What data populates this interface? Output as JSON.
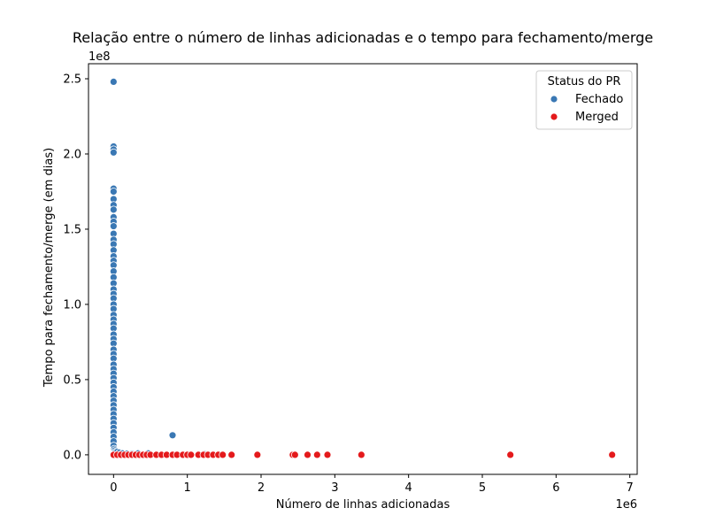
{
  "chart_data": {
    "type": "scatter",
    "title": "Relação entre o número de linhas adicionadas e o tempo para fechamento/merge",
    "xlabel": "Número de linhas adicionadas",
    "ylabel": "Tempo para fechamento/merge (em dias)",
    "x_offset_label": "1e6",
    "y_offset_label": "1e8",
    "xlim": [
      -0.34,
      7.1
    ],
    "ylim": [
      -0.13,
      2.6
    ],
    "x_scale": 1000000,
    "y_scale": 100000000,
    "x_ticks": [
      {
        "value": 0,
        "label": "0"
      },
      {
        "value": 1,
        "label": "1"
      },
      {
        "value": 2,
        "label": "2"
      },
      {
        "value": 3,
        "label": "3"
      },
      {
        "value": 4,
        "label": "4"
      },
      {
        "value": 5,
        "label": "5"
      },
      {
        "value": 6,
        "label": "6"
      },
      {
        "value": 7,
        "label": "7"
      }
    ],
    "y_ticks": [
      {
        "value": 0.0,
        "label": "0.0"
      },
      {
        "value": 0.5,
        "label": "0.5"
      },
      {
        "value": 1.0,
        "label": "1.0"
      },
      {
        "value": 1.5,
        "label": "1.5"
      },
      {
        "value": 2.0,
        "label": "2.0"
      },
      {
        "value": 2.5,
        "label": "2.5"
      }
    ],
    "grid": false,
    "legend": {
      "title": "Status do PR",
      "placement": "top-right"
    },
    "series": [
      {
        "name": "Fechado",
        "color": "#3a78b4",
        "points": [
          [
            0.0,
            2.48
          ],
          [
            0.0,
            2.05
          ],
          [
            0.0,
            2.03
          ],
          [
            0.0,
            2.01
          ],
          [
            0.0,
            1.77
          ],
          [
            0.0,
            1.75
          ],
          [
            0.0,
            1.7
          ],
          [
            0.0,
            1.66
          ],
          [
            0.0,
            1.63
          ],
          [
            0.0,
            1.58
          ],
          [
            0.0,
            1.55
          ],
          [
            0.0,
            1.52
          ],
          [
            0.0,
            1.47
          ],
          [
            0.0,
            1.43
          ],
          [
            0.0,
            1.4
          ],
          [
            0.0,
            1.36
          ],
          [
            0.0,
            1.32
          ],
          [
            0.0,
            1.29
          ],
          [
            0.0,
            1.26
          ],
          [
            0.0,
            1.22
          ],
          [
            0.0,
            1.18
          ],
          [
            0.0,
            1.14
          ],
          [
            0.0,
            1.1
          ],
          [
            0.0,
            1.07
          ],
          [
            0.0,
            1.04
          ],
          [
            0.0,
            1.0
          ],
          [
            0.0,
            0.97
          ],
          [
            0.0,
            0.93
          ],
          [
            0.0,
            0.9
          ],
          [
            0.0,
            0.87
          ],
          [
            0.0,
            0.84
          ],
          [
            0.0,
            0.8
          ],
          [
            0.0,
            0.77
          ],
          [
            0.0,
            0.74
          ],
          [
            0.0,
            0.7
          ],
          [
            0.0,
            0.67
          ],
          [
            0.0,
            0.64
          ],
          [
            0.0,
            0.6
          ],
          [
            0.0,
            0.57
          ],
          [
            0.0,
            0.54
          ],
          [
            0.0,
            0.51
          ],
          [
            0.0,
            0.48
          ],
          [
            0.0,
            0.45
          ],
          [
            0.0,
            0.42
          ],
          [
            0.0,
            0.39
          ],
          [
            0.0,
            0.36
          ],
          [
            0.0,
            0.33
          ],
          [
            0.0,
            0.3
          ],
          [
            0.0,
            0.27
          ],
          [
            0.0,
            0.24
          ],
          [
            0.0,
            0.21
          ],
          [
            0.0,
            0.18
          ],
          [
            0.0,
            0.15
          ],
          [
            0.0,
            0.12
          ],
          [
            0.0,
            0.09
          ],
          [
            0.0,
            0.06
          ],
          [
            0.01,
            0.04
          ],
          [
            0.02,
            0.03
          ],
          [
            0.03,
            0.02
          ],
          [
            0.05,
            0.02
          ],
          [
            0.08,
            0.015
          ],
          [
            0.12,
            0.01
          ],
          [
            0.18,
            0.008
          ],
          [
            0.25,
            0.006
          ],
          [
            0.33,
            0.01
          ],
          [
            0.47,
            0.01
          ],
          [
            0.8,
            0.13
          ],
          [
            1.23,
            0.005
          ]
        ]
      },
      {
        "name": "Merged",
        "color": "#e41a1c",
        "points": [
          [
            0.0,
            0.0
          ],
          [
            0.05,
            0.0
          ],
          [
            0.1,
            0.0
          ],
          [
            0.15,
            0.0
          ],
          [
            0.2,
            0.0
          ],
          [
            0.25,
            0.0
          ],
          [
            0.3,
            0.0
          ],
          [
            0.35,
            0.0
          ],
          [
            0.4,
            0.0
          ],
          [
            0.45,
            0.0
          ],
          [
            0.5,
            0.0
          ],
          [
            0.58,
            0.0
          ],
          [
            0.65,
            0.0
          ],
          [
            0.72,
            0.0
          ],
          [
            0.8,
            0.0
          ],
          [
            0.86,
            0.0
          ],
          [
            0.94,
            0.0
          ],
          [
            1.0,
            0.0
          ],
          [
            1.05,
            0.0
          ],
          [
            1.15,
            0.0
          ],
          [
            1.22,
            0.0
          ],
          [
            1.28,
            0.0
          ],
          [
            1.35,
            0.0
          ],
          [
            1.42,
            0.0
          ],
          [
            1.48,
            0.0
          ],
          [
            1.6,
            0.0
          ],
          [
            1.95,
            0.0
          ],
          [
            2.43,
            0.0
          ],
          [
            2.46,
            0.0
          ],
          [
            2.63,
            0.0
          ],
          [
            2.76,
            0.0
          ],
          [
            2.9,
            0.0
          ],
          [
            3.36,
            0.0
          ],
          [
            5.38,
            0.0
          ],
          [
            6.76,
            0.0
          ]
        ]
      }
    ]
  }
}
